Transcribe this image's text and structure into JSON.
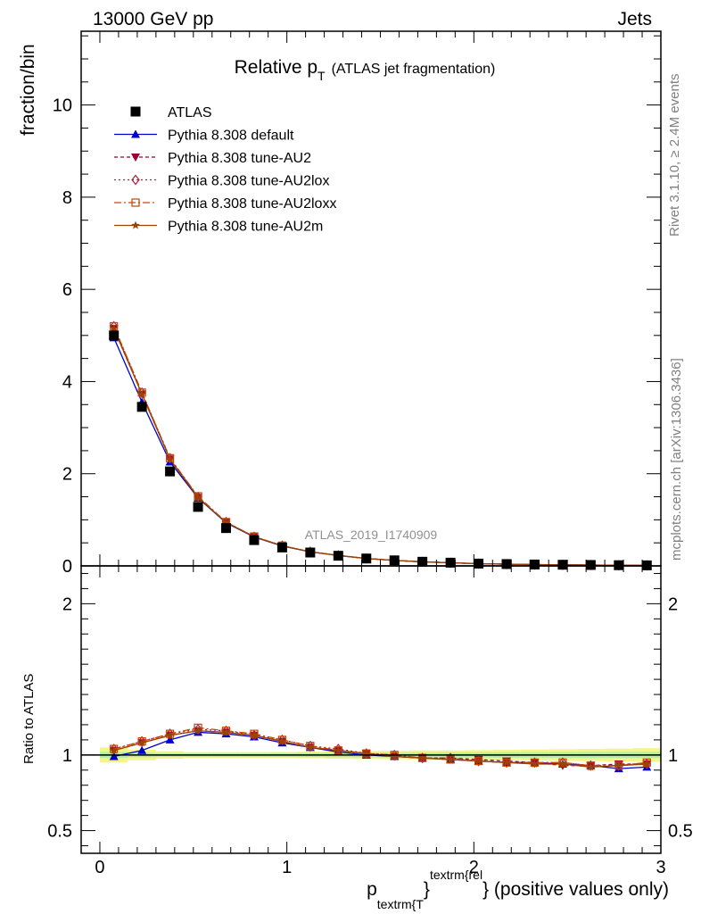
{
  "header": {
    "left": "13000 GeV pp",
    "right": "Jets"
  },
  "side_text": {
    "rivet": "Rivet 3.1.10, ≥ 2.4M events",
    "mcplots": "mcplots.cern.ch [arXiv:1306.3436]"
  },
  "watermark": "ATLAS_2019_I1740909",
  "chart_data": {
    "type": "line",
    "title": {
      "main": "Relative p",
      "sub": "T",
      "rest": "(ATLAS jet fragmentation)"
    },
    "xlabel": {
      "p": "p",
      "sub": "textrm{T",
      "close": "}",
      "sup": "textrm{rel",
      "tail": "} (positive values only)"
    },
    "ylabel": "fraction/bin",
    "ratio_ylabel": "Ratio to ATLAS",
    "xlim": [
      -0.1,
      3.0
    ],
    "ylim": [
      0,
      11.6
    ],
    "ratio_ylim": [
      0.35,
      2.25
    ],
    "grid": false,
    "legend_position": "top-left",
    "x_ticks": [
      "0",
      "1",
      "2",
      "3"
    ],
    "y_ticks": [
      "0",
      "2",
      "4",
      "6",
      "8",
      "10"
    ],
    "ratio_ticks": [
      "0.5",
      "1",
      "2"
    ],
    "x": [
      0.075,
      0.225,
      0.375,
      0.525,
      0.675,
      0.825,
      0.975,
      1.125,
      1.275,
      1.425,
      1.575,
      1.725,
      1.875,
      2.025,
      2.175,
      2.325,
      2.475,
      2.625,
      2.775,
      2.925
    ],
    "data": {
      "name": "ATLAS",
      "values": [
        5.0,
        3.45,
        2.05,
        1.28,
        0.82,
        0.56,
        0.4,
        0.29,
        0.22,
        0.16,
        0.12,
        0.09,
        0.07,
        0.05,
        0.04,
        0.03,
        0.025,
        0.02,
        0.015,
        0.012
      ]
    },
    "series": [
      {
        "name": "Pythia 8.308 default",
        "color": "#0000cc",
        "marker": "triangle-up",
        "dash": "solid",
        "ratio": [
          0.99,
          1.03,
          1.1,
          1.15,
          1.14,
          1.12,
          1.08,
          1.05,
          1.02,
          1.0,
          0.99,
          0.98,
          0.97,
          0.96,
          0.95,
          0.95,
          0.94,
          0.93,
          0.91,
          0.92
        ]
      },
      {
        "name": "Pythia 8.308 tune-AU2",
        "color": "#990033",
        "marker": "triangle-down",
        "dash": "4,3",
        "ratio": [
          1.03,
          1.08,
          1.13,
          1.16,
          1.15,
          1.13,
          1.09,
          1.05,
          1.03,
          1.01,
          0.99,
          0.98,
          0.98,
          0.97,
          0.96,
          0.95,
          0.93,
          0.93,
          0.94,
          0.94
        ]
      },
      {
        "name": "Pythia 8.308 tune-AU2lox",
        "color": "#aa2244",
        "marker": "diamond-open",
        "dash": "2,3",
        "ratio": [
          1.04,
          1.09,
          1.14,
          1.17,
          1.16,
          1.13,
          1.1,
          1.06,
          1.04,
          1.01,
          1.0,
          0.98,
          0.98,
          0.96,
          0.95,
          0.95,
          0.95,
          0.93,
          0.93,
          0.94
        ]
      },
      {
        "name": "Pythia 8.308 tune-AU2loxx",
        "color": "#cc4400",
        "marker": "square-open",
        "dash": "8,3,2,3",
        "ratio": [
          1.04,
          1.09,
          1.14,
          1.18,
          1.16,
          1.14,
          1.1,
          1.06,
          1.03,
          1.01,
          1.0,
          0.98,
          0.97,
          0.96,
          0.95,
          0.95,
          0.95,
          0.93,
          0.93,
          0.95
        ]
      },
      {
        "name": "Pythia 8.308 tune-AU2m",
        "color": "#994400",
        "marker": "star",
        "dash": "solid",
        "ratio": [
          1.03,
          1.08,
          1.13,
          1.16,
          1.15,
          1.13,
          1.09,
          1.05,
          1.03,
          1.01,
          0.99,
          0.98,
          0.97,
          0.96,
          0.95,
          0.94,
          0.94,
          0.92,
          0.93,
          0.94
        ]
      }
    ],
    "uncertainty_bands": {
      "stat_color": "#b4f0a0",
      "total_color": "#f2f58a",
      "inner": [
        0.02,
        0.015,
        0.012,
        0.012,
        0.012,
        0.012,
        0.013,
        0.014,
        0.015,
        0.016,
        0.016,
        0.016,
        0.017,
        0.017,
        0.018,
        0.018,
        0.019,
        0.02,
        0.02,
        0.02
      ],
      "outer": [
        0.05,
        0.035,
        0.025,
        0.02,
        0.02,
        0.02,
        0.02,
        0.022,
        0.025,
        0.027,
        0.028,
        0.03,
        0.03,
        0.032,
        0.034,
        0.036,
        0.038,
        0.04,
        0.042,
        0.045
      ]
    }
  }
}
